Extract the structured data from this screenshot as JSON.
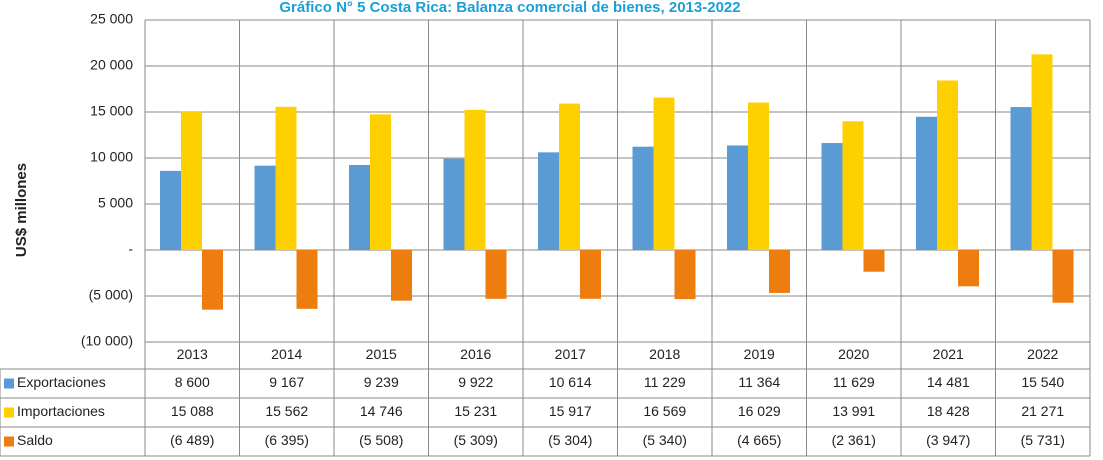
{
  "chart_data": {
    "type": "bar",
    "title": "Gráfico N° 5 Costa Rica: Balanza comercial de bienes, 2013-2022",
    "y_label": "US$ millones",
    "categories": [
      "2013",
      "2014",
      "2015",
      "2016",
      "2017",
      "2018",
      "2019",
      "2020",
      "2021",
      "2022"
    ],
    "series": [
      {
        "name": "Exportaciones",
        "color": "#5b9bd5",
        "values": [
          8600,
          9167,
          9239,
          9922,
          10614,
          11229,
          11364,
          11629,
          14481,
          15540
        ],
        "value_labels": [
          "8 600",
          "9 167",
          "9 239",
          "9 922",
          "10 614",
          "11 229",
          "11 364",
          "11 629",
          "14 481",
          "15 540"
        ]
      },
      {
        "name": "Importaciones",
        "color": "#ffd000",
        "values": [
          15088,
          15562,
          14746,
          15231,
          15917,
          16569,
          16029,
          13991,
          18428,
          21271
        ],
        "value_labels": [
          "15 088",
          "15 562",
          "14 746",
          "15 231",
          "15 917",
          "16 569",
          "16 029",
          "13 991",
          "18 428",
          "21 271"
        ]
      },
      {
        "name": "Saldo",
        "color": "#ed7d0f",
        "values": [
          -6489,
          -6395,
          -5508,
          -5309,
          -5304,
          -5340,
          -4665,
          -2361,
          -3947,
          -5731
        ],
        "value_labels": [
          "(6 489)",
          "(6 395)",
          "(5 508)",
          "(5 309)",
          "(5 304)",
          "(5 340)",
          "(4 665)",
          "(2 361)",
          "(3 947)",
          "(5 731)"
        ]
      }
    ],
    "ylim": [
      -10000,
      25000
    ],
    "yticks": [
      {
        "value": -10000,
        "label": "(10 000)"
      },
      {
        "value": -5000,
        "label": "(5 000)"
      },
      {
        "value": 0,
        "label": "-"
      },
      {
        "value": 5000,
        "label": "5 000"
      },
      {
        "value": 10000,
        "label": "10 000"
      },
      {
        "value": 15000,
        "label": "15 000"
      },
      {
        "value": 20000,
        "label": "20 000"
      },
      {
        "value": 25000,
        "label": "25 000"
      }
    ],
    "grid": true
  }
}
